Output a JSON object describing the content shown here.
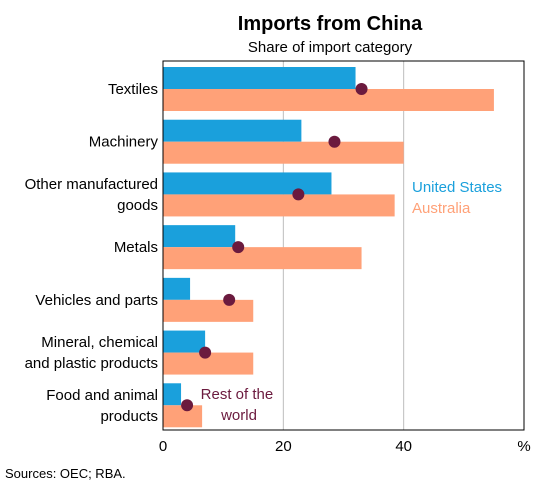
{
  "chart_data": {
    "type": "bar",
    "title": "Imports from China",
    "subtitle": "Share of import category",
    "categories": [
      [
        "Textiles"
      ],
      [
        "Machinery"
      ],
      [
        "Other manufactured",
        "goods"
      ],
      [
        "Metals"
      ],
      [
        "Vehicles and parts"
      ],
      [
        "Mineral, chemical",
        "and plastic products"
      ],
      [
        "Food and animal",
        "products"
      ]
    ],
    "series": [
      {
        "name": "United States",
        "kind": "bar",
        "color": "#1aa0dc",
        "values": [
          32,
          23,
          28,
          12,
          4.5,
          7,
          3
        ]
      },
      {
        "name": "Australia",
        "kind": "bar",
        "color": "#ffa178",
        "values": [
          55,
          40,
          38.5,
          33,
          15,
          15,
          6.5
        ]
      },
      {
        "name": "Rest of the world",
        "kind": "marker",
        "color": "#6b1a3e",
        "values": [
          33,
          28.5,
          22.5,
          12.5,
          11,
          7,
          4
        ]
      }
    ],
    "xlim": [
      0,
      60
    ],
    "xticks": [
      0,
      20,
      40
    ],
    "xunit": "%",
    "grid": true,
    "legend_labels": {
      "us": "United States",
      "au": "Australia",
      "row": [
        "Rest of the",
        "world"
      ]
    },
    "source": "Sources: OEC; RBA."
  }
}
